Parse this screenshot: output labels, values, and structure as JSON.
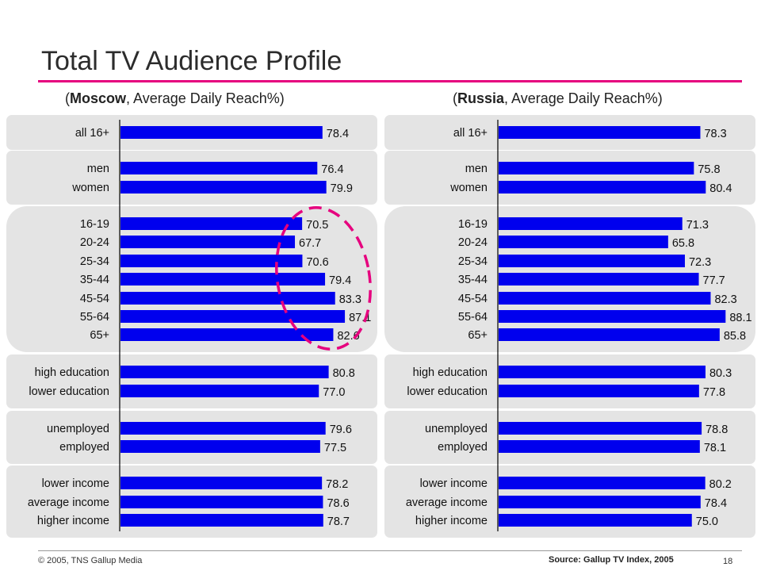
{
  "title": "Total TV Audience Profile",
  "colors": {
    "accent": "#e6007e",
    "bar": "#0000ee",
    "group_bg": "#e4e4e4",
    "highlight": "#e6007e"
  },
  "panels": [
    {
      "location": "Moscow",
      "subtitle": ", Average Daily Reach%)"
    },
    {
      "location": "Russia",
      "subtitle": ", Average Daily Reach%)"
    }
  ],
  "chart_data": [
    {
      "type": "bar",
      "orientation": "horizontal",
      "title": "(Moscow, Average Daily Reach%)",
      "categories": [
        "all 16+",
        "men",
        "women",
        "16-19",
        "20-24",
        "25-34",
        "35-44",
        "45-54",
        "55-64",
        "65+",
        "high education",
        "lower education",
        "unemployed",
        "employed",
        "lower income",
        "average income",
        "higher income"
      ],
      "values": [
        78.4,
        76.4,
        79.9,
        70.5,
        67.7,
        70.6,
        79.4,
        83.3,
        87.1,
        82.6,
        80.8,
        77.0,
        79.6,
        77.5,
        78.2,
        78.6,
        78.7
      ],
      "value_labels": [
        "78.4",
        "76.4",
        "79.9",
        "70.5",
        "67.7",
        "70.6",
        "79.4",
        "83.3",
        "87.1",
        "82.6",
        "80.8",
        "77.0",
        "79.6",
        "77.5",
        "78.2",
        "78.6",
        "78.7"
      ],
      "groups": [
        [
          0
        ],
        [
          1,
          2
        ],
        [
          3,
          4,
          5,
          6,
          7,
          8,
          9
        ],
        [
          10,
          11
        ],
        [
          12,
          13
        ],
        [
          14,
          15,
          16
        ]
      ],
      "highlighted_categories": [
        "16-19",
        "20-24",
        "25-34",
        "35-44",
        "45-54",
        "55-64",
        "65+"
      ],
      "xlim": [
        0,
        100
      ],
      "grid": false
    },
    {
      "type": "bar",
      "orientation": "horizontal",
      "title": "(Russia, Average Daily Reach%)",
      "categories": [
        "all 16+",
        "men",
        "women",
        "16-19",
        "20-24",
        "25-34",
        "35-44",
        "45-54",
        "55-64",
        "65+",
        "high education",
        "lower education",
        "unemployed",
        "employed",
        "lower income",
        "average income",
        "higher income"
      ],
      "values": [
        78.3,
        75.8,
        80.4,
        71.3,
        65.8,
        72.3,
        77.7,
        82.3,
        88.1,
        85.8,
        80.3,
        77.8,
        78.8,
        78.1,
        80.2,
        78.4,
        75.0
      ],
      "value_labels": [
        "78.3",
        "75.8",
        "80.4",
        "71.3",
        "65.8",
        "72.3",
        "77.7",
        "82.3",
        "88.1",
        "85.8",
        "80.3",
        "77.8",
        "78.8",
        "78.1",
        "80.2",
        "78.4",
        "75.0"
      ],
      "groups": [
        [
          0
        ],
        [
          1,
          2
        ],
        [
          3,
          4,
          5,
          6,
          7,
          8,
          9
        ],
        [
          10,
          11
        ],
        [
          12,
          13
        ],
        [
          14,
          15,
          16
        ]
      ],
      "xlim": [
        0,
        100
      ],
      "grid": false
    }
  ],
  "footer": {
    "copyright": "© 2005, TNS Gallup Media",
    "source": "Source: Gallup TV Index, 2005",
    "page": "18"
  }
}
